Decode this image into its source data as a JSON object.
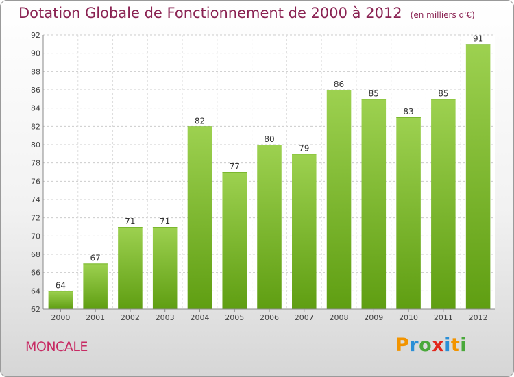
{
  "title": "Dotation Globale de Fonctionnement de 2000 à 2012",
  "unit": "(en milliers d'€)",
  "commune": "MONCALE",
  "logo": {
    "letters": [
      "P",
      "r",
      "o",
      "x",
      "i",
      "t",
      "i"
    ],
    "colors": [
      "#f29400",
      "#2b8fd6",
      "#49a83a",
      "#e2261b",
      "#2b8fd6",
      "#f29400",
      "#49a83a"
    ]
  },
  "colors": {
    "bar_top": "#9dd150",
    "bar_bottom": "#5f9e12",
    "title": "#8a2252",
    "commune": "#c72a63",
    "grid": "#cccccc"
  },
  "chart_data": {
    "type": "bar",
    "categories": [
      "2000",
      "2001",
      "2002",
      "2003",
      "2004",
      "2005",
      "2006",
      "2007",
      "2008",
      "2009",
      "2010",
      "2011",
      "2012"
    ],
    "values": [
      64,
      67,
      71,
      71,
      82,
      77,
      80,
      79,
      86,
      85,
      83,
      85,
      91
    ],
    "ylim": [
      62,
      92
    ],
    "yticks": [
      62,
      64,
      66,
      68,
      70,
      72,
      74,
      76,
      78,
      80,
      82,
      84,
      86,
      88,
      90,
      92
    ],
    "grid": "horizontal dashed",
    "data_labels": true
  }
}
